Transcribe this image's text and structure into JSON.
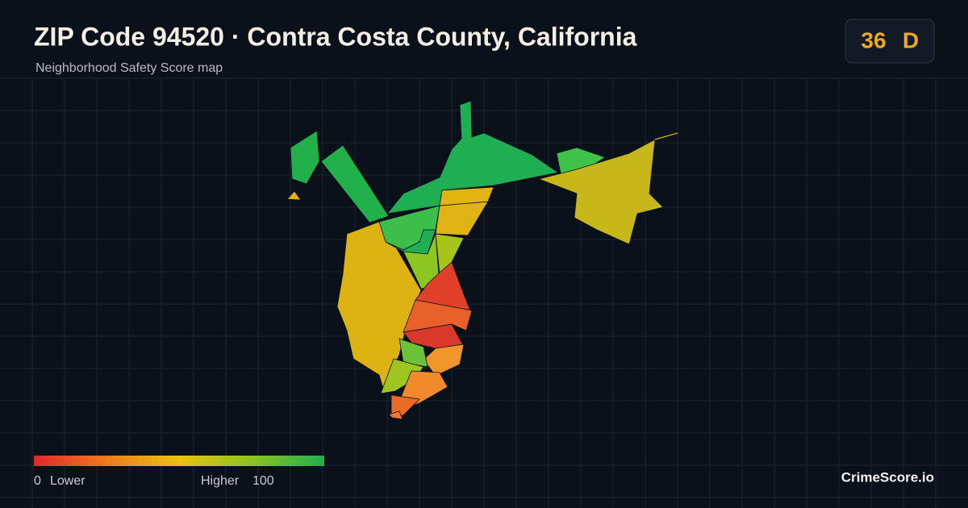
{
  "header": {
    "title": "ZIP Code 94520 · Contra Costa County, California",
    "subtitle": "Neighborhood Safety Score map"
  },
  "score": {
    "value": 36,
    "grade": "D"
  },
  "legend": {
    "min": 0,
    "min_label": "Lower",
    "max_label": "Higher",
    "max": 100
  },
  "brand": "CrimeScore.io"
}
